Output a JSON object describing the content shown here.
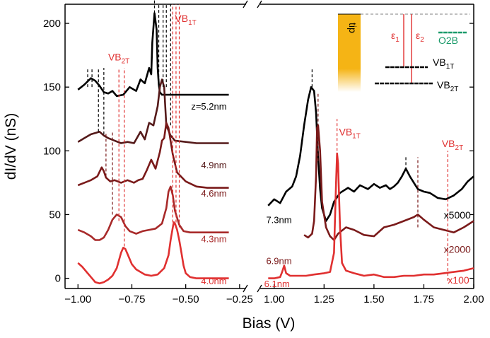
{
  "chart_data": {
    "type": "line",
    "y_axis": {
      "label": "dI/dV (nS)",
      "range": [
        -8,
        215
      ],
      "ticks": [
        0,
        50,
        100,
        150,
        200
      ]
    },
    "x_axis": {
      "label": "Bias (V)",
      "break": true
    },
    "panels": [
      {
        "name": "left",
        "xlim": [
          -1.06,
          -0.22
        ],
        "ticks": [
          -1.0,
          -0.75,
          -0.5,
          -0.25
        ],
        "tick_labels": [
          "−1.00",
          "−0.75",
          "−0.50",
          "−0.25"
        ],
        "series": [
          {
            "name": "z=5.2nm",
            "label": "z=5.2nm",
            "color": "#000000",
            "label_pos": [
              -0.31,
              135
            ],
            "x": [
              -1.0,
              -0.97,
              -0.94,
              -0.92,
              -0.9,
              -0.88,
              -0.86,
              -0.84,
              -0.82,
              -0.79,
              -0.76,
              -0.73,
              -0.71,
              -0.69,
              -0.67,
              -0.66,
              -0.655,
              -0.645,
              -0.635,
              -0.63,
              -0.625,
              -0.62,
              -0.61,
              -0.59,
              -0.55,
              -0.5,
              -0.45,
              -0.4,
              -0.35,
              -0.3
            ],
            "y": [
              148,
              152,
              157,
              155,
              151,
              146,
              145,
              147,
              143,
              144,
              150,
              147,
              156,
              153,
              165,
              160,
              185,
              208,
              195,
              165,
              152,
              146,
              144,
              144,
              144,
              144,
              144,
              144,
              144,
              144
            ]
          },
          {
            "name": "4.9nm",
            "label": "4.9nm",
            "color": "#551a1a",
            "label_pos": [
              -0.31,
              89
            ],
            "x": [
              -1.0,
              -0.97,
              -0.94,
              -0.92,
              -0.9,
              -0.88,
              -0.86,
              -0.83,
              -0.8,
              -0.77,
              -0.74,
              -0.71,
              -0.69,
              -0.67,
              -0.65,
              -0.63,
              -0.62,
              -0.61,
              -0.6,
              -0.59,
              -0.57,
              -0.55,
              -0.5,
              -0.45,
              -0.4,
              -0.35,
              -0.3
            ],
            "y": [
              107,
              110,
              113,
              114,
              115,
              112,
              110,
              108,
              106,
              107,
              106,
              115,
              109,
              122,
              120,
              135,
              150,
              156,
              150,
              120,
              112,
              108,
              107,
              106,
              106,
              106,
              106
            ]
          },
          {
            "name": "4.6nm",
            "label": "4.6nm",
            "color": "#7a1a1a",
            "label_pos": [
              -0.31,
              67
            ],
            "x": [
              -1.0,
              -0.97,
              -0.94,
              -0.91,
              -0.89,
              -0.88,
              -0.87,
              -0.85,
              -0.83,
              -0.8,
              -0.77,
              -0.74,
              -0.72,
              -0.7,
              -0.68,
              -0.66,
              -0.64,
              -0.62,
              -0.61,
              -0.6,
              -0.59,
              -0.58,
              -0.56,
              -0.54,
              -0.5,
              -0.45,
              -0.4,
              -0.35,
              -0.3
            ],
            "y": [
              73,
              75,
              77,
              80,
              87,
              84,
              79,
              76,
              77,
              75,
              77,
              75,
              77,
              78,
              85,
              93,
              86,
              99,
              108,
              110,
              122,
              118,
              97,
              83,
              76,
              72,
              71,
              71,
              71
            ]
          },
          {
            "name": "4.3nm",
            "label": "4.3nm",
            "color": "#a82a2a",
            "label_pos": [
              -0.31,
              31
            ],
            "x": [
              -1.0,
              -0.97,
              -0.94,
              -0.92,
              -0.9,
              -0.88,
              -0.86,
              -0.84,
              -0.82,
              -0.8,
              -0.78,
              -0.76,
              -0.73,
              -0.7,
              -0.67,
              -0.64,
              -0.61,
              -0.59,
              -0.58,
              -0.57,
              -0.56,
              -0.55,
              -0.53,
              -0.51,
              -0.48,
              -0.45,
              -0.4,
              -0.35,
              -0.3
            ],
            "y": [
              38,
              36,
              33,
              30,
              30,
              32,
              38,
              46,
              50,
              48,
              41,
              37,
              35,
              37,
              38,
              39,
              43,
              55,
              68,
              72,
              65,
              53,
              42,
              37,
              36,
              36,
              36,
              36,
              36
            ]
          },
          {
            "name": "4.0nm",
            "label": "4.0nm",
            "color": "#e03030",
            "label_pos": [
              -0.31,
              -2
            ],
            "x": [
              -1.0,
              -0.98,
              -0.96,
              -0.94,
              -0.92,
              -0.9,
              -0.88,
              -0.86,
              -0.84,
              -0.82,
              -0.8,
              -0.79,
              -0.78,
              -0.77,
              -0.75,
              -0.73,
              -0.71,
              -0.69,
              -0.66,
              -0.63,
              -0.6,
              -0.58,
              -0.57,
              -0.56,
              -0.555,
              -0.55,
              -0.54,
              -0.53,
              -0.52,
              -0.51,
              -0.5,
              -0.48,
              -0.45,
              -0.4,
              -0.35,
              -0.3
            ],
            "y": [
              12,
              9,
              5,
              1,
              -3,
              -4,
              -3,
              -1,
              2,
              8,
              20,
              24,
              23,
              19,
              11,
              7,
              5,
              3,
              2,
              3,
              8,
              18,
              30,
              40,
              44,
              43,
              38,
              30,
              20,
              10,
              4,
              1,
              0,
              0,
              0,
              0
            ]
          }
        ],
        "vlines": [
          {
            "x": -0.955,
            "y1": 150,
            "y2": 165,
            "color": "#000000"
          },
          {
            "x": -0.935,
            "y1": 150,
            "y2": 165,
            "color": "#000000"
          },
          {
            "x": -0.905,
            "y1": 115,
            "y2": 165,
            "color": "#000000"
          },
          {
            "x": -0.88,
            "y1": 113,
            "y2": 165,
            "color": "#000000"
          },
          {
            "x": -0.645,
            "y1": 208,
            "y2": 218,
            "color": "#000000"
          },
          {
            "x": -0.625,
            "y1": 150,
            "y2": 215,
            "color": "#000000"
          },
          {
            "x": -0.605,
            "y1": 150,
            "y2": 215,
            "color": "#000000"
          },
          {
            "x": -0.59,
            "y1": 150,
            "y2": 215,
            "color": "#000000"
          },
          {
            "x": -0.57,
            "y1": 120,
            "y2": 215,
            "color": "#000000"
          },
          {
            "x": -0.87,
            "y1": 80,
            "y2": 115,
            "color": "#7a1a1a"
          },
          {
            "x": -0.84,
            "y1": 50,
            "y2": 115,
            "color": "#7a1a1a"
          },
          {
            "x": -0.81,
            "y1": 45,
            "y2": 165,
            "color": "#e03030"
          },
          {
            "x": -0.785,
            "y1": 25,
            "y2": 165,
            "color": "#e03030"
          },
          {
            "x": -0.56,
            "y1": 40,
            "y2": 215,
            "color": "#e03030"
          },
          {
            "x": -0.545,
            "y1": 40,
            "y2": 215,
            "color": "#e03030"
          },
          {
            "x": -0.53,
            "y1": 40,
            "y2": 215,
            "color": "#e03030"
          }
        ],
        "annotations": [
          {
            "text": "VB",
            "sub": "2T",
            "x": -0.86,
            "y": 171,
            "color": "#e03030"
          },
          {
            "text": "VB",
            "sub": "1T",
            "x": -0.55,
            "y": 201,
            "color": "#e03030"
          }
        ]
      },
      {
        "name": "right",
        "xlim": [
          0.93,
          2.0
        ],
        "ticks": [
          1.0,
          1.25,
          1.5,
          1.75,
          2.0
        ],
        "tick_labels": [
          "1.00",
          "1.25",
          "1.50",
          "1.75",
          "2.00"
        ],
        "series": [
          {
            "name": "7.3nm",
            "label": "7.3nm",
            "color": "#000000",
            "label_pos": [
              0.96,
              46
            ],
            "x": [
              0.97,
              1.0,
              1.03,
              1.06,
              1.09,
              1.11,
              1.13,
              1.15,
              1.17,
              1.185,
              1.2,
              1.21,
              1.22,
              1.23,
              1.24,
              1.26,
              1.28,
              1.3,
              1.33,
              1.37,
              1.4,
              1.43,
              1.47,
              1.5,
              1.53,
              1.56,
              1.58,
              1.6,
              1.62,
              1.64,
              1.66,
              1.68,
              1.7,
              1.72,
              1.75,
              1.78,
              1.82,
              1.86,
              1.9,
              1.94,
              1.97,
              2.0
            ],
            "y": [
              57,
              62,
              59,
              68,
              72,
              80,
              96,
              120,
              140,
              150,
              147,
              130,
              95,
              70,
              55,
              45,
              50,
              60,
              67,
              71,
              68,
              73,
              70,
              74,
              71,
              73,
              70,
              72,
              75,
              80,
              86,
              80,
              75,
              70,
              68,
              67,
              63,
              62,
              65,
              70,
              76,
              80
            ]
          },
          {
            "name": "6.9nm",
            "label": "6.9nm",
            "color": "#7a1a1a",
            "label_pos": [
              0.96,
              14
            ],
            "x": [
              1.15,
              1.17,
              1.19,
              1.2,
              1.21,
              1.215,
              1.22,
              1.23,
              1.24,
              1.26,
              1.28,
              1.3,
              1.32,
              1.36,
              1.4,
              1.45,
              1.5,
              1.55,
              1.6,
              1.65,
              1.7,
              1.72,
              1.75,
              1.8,
              1.85,
              1.9,
              1.95,
              2.0
            ],
            "y": [
              34,
              32,
              35,
              45,
              80,
              118,
              120,
              100,
              60,
              40,
              33,
              30,
              35,
              40,
              38,
              34,
              33,
              40,
              42,
              45,
              48,
              50,
              46,
              40,
              38,
              36,
              40,
              45
            ]
          },
          {
            "name": "6.1nm",
            "label": "6.1nm",
            "color": "#e03030",
            "label_pos": [
              0.95,
              -4
            ],
            "x": [
              0.97,
              1.0,
              1.03,
              1.04,
              1.05,
              1.06,
              1.08,
              1.12,
              1.16,
              1.2,
              1.25,
              1.28,
              1.3,
              1.31,
              1.315,
              1.32,
              1.33,
              1.34,
              1.36,
              1.4,
              1.45,
              1.5,
              1.55,
              1.6,
              1.65,
              1.7,
              1.75,
              1.8,
              1.85,
              1.9,
              1.95,
              2.0
            ],
            "y": [
              0,
              0,
              1,
              5,
              10,
              4,
              2,
              2,
              2,
              3,
              4,
              5,
              20,
              75,
              98,
              90,
              40,
              12,
              6,
              4,
              2,
              3,
              1,
              1,
              2,
              2,
              3,
              3,
              4,
              5,
              6,
              8
            ]
          }
        ],
        "vlines": [
          {
            "x": 1.19,
            "y1": 150,
            "y2": 165,
            "color": "#000000"
          },
          {
            "x": 1.22,
            "y1": 92,
            "y2": 145,
            "color": "#7a1a1a"
          },
          {
            "x": 1.315,
            "y1": 100,
            "y2": 125,
            "color": "#e03030"
          },
          {
            "x": 1.66,
            "y1": 85,
            "y2": 95,
            "color": "#000000"
          },
          {
            "x": 1.72,
            "y1": 40,
            "y2": 95,
            "color": "#7a1a1a"
          },
          {
            "x": 1.87,
            "y1": -2,
            "y2": 100,
            "color": "#e03030"
          }
        ],
        "annotations": [
          {
            "text": "VB",
            "sub": "1T",
            "x": 1.325,
            "y": 112,
            "color": "#e03030"
          },
          {
            "text": "VB",
            "sub": "2T",
            "x": 1.84,
            "y": 103,
            "color": "#e03030"
          },
          {
            "text": "x5000",
            "x": 1.85,
            "y": 47,
            "color": "#000000"
          },
          {
            "text": "x2000",
            "x": 1.85,
            "y": 20,
            "color": "#7a1a1a"
          },
          {
            "text": "x100",
            "x": 1.87,
            "y": -4,
            "color": "#e03030"
          }
        ]
      }
    ],
    "inset": {
      "type": "energy-diagram",
      "tip_label": "tip",
      "labels": [
        {
          "text": "ε",
          "sub": "1",
          "color": "#e03030"
        },
        {
          "text": "ε",
          "sub": "2",
          "color": "#e03030"
        },
        {
          "text": "O2B",
          "sub": "",
          "color": "#1a9a6a"
        },
        {
          "text": "VB",
          "sub": "1T",
          "color": "#000000"
        },
        {
          "text": "VB",
          "sub": "2T",
          "color": "#000000"
        }
      ],
      "colors": {
        "tip": "#f5b415",
        "arrows": "#e03030",
        "o2b": "#1a9a6a",
        "fermi": "#999999"
      }
    }
  }
}
